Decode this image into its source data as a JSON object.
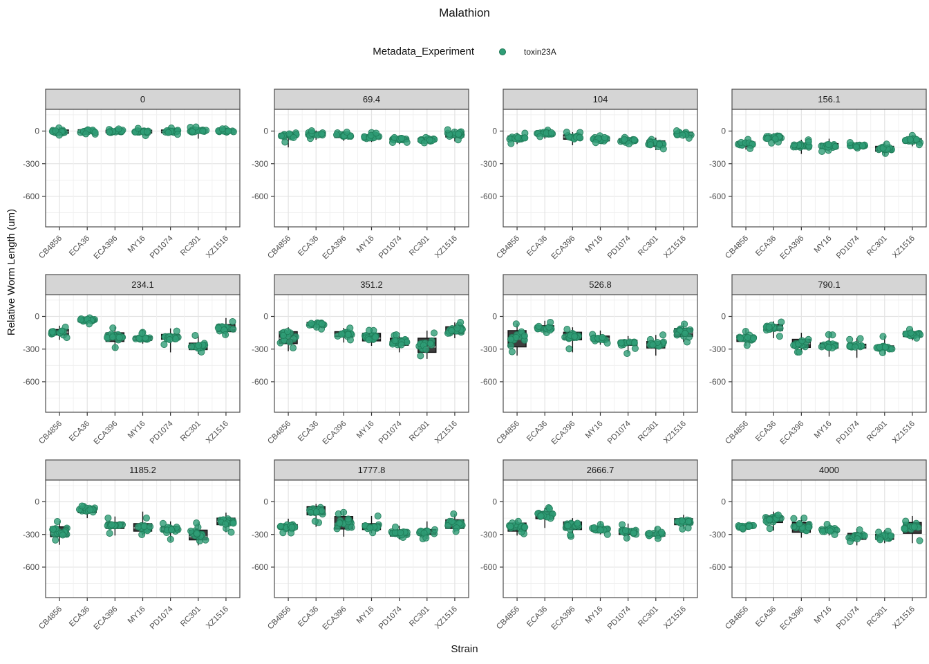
{
  "chart_data": {
    "type": "boxplot-jitter-facets",
    "title": "Malathion",
    "legend_title": "Metadata_Experiment",
    "legend_entries": [
      {
        "label": "toxin23A",
        "color": "#2f9e77"
      }
    ],
    "xlabel": "Strain",
    "ylabel": "Relative Worm Length (um)",
    "categories": [
      "CB4856",
      "ECA36",
      "ECA396",
      "MY16",
      "PD1074",
      "RC301",
      "XZ1516"
    ],
    "yticks": [
      0,
      -300,
      -600
    ],
    "grid_minor_y": [
      150,
      -150,
      -450,
      -750
    ],
    "ylim": [
      200,
      -880
    ],
    "grid": true,
    "legend_position": "top",
    "points_per_group": 16,
    "colors": {
      "point": "#2f9e77",
      "point_stroke": "#1e7a57",
      "box_fill": "#3d3d3d",
      "box_stroke": "#141414",
      "median": "#9a9a9a",
      "strip_bg": "#d5d5d5",
      "panel_border": "#4d4d4d",
      "grid_major": "#e3e3e3",
      "grid_minor": "#f0f0f0",
      "tick_text": "#4d4d4d",
      "axis_tick": "#333333"
    },
    "facets": [
      {
        "label": "0",
        "boxes": [
          [
            -45,
            -20,
            -5,
            10,
            35
          ],
          [
            -40,
            -15,
            0,
            12,
            40
          ],
          [
            -30,
            -15,
            -5,
            8,
            25
          ],
          [
            -45,
            -18,
            -5,
            8,
            30
          ],
          [
            -30,
            -15,
            -5,
            10,
            30
          ],
          [
            -70,
            -15,
            0,
            15,
            40
          ],
          [
            -25,
            -15,
            -5,
            8,
            20
          ]
        ]
      },
      {
        "label": "69.4",
        "boxes": [
          [
            -150,
            -60,
            -40,
            -20,
            -5
          ],
          [
            -80,
            -45,
            -25,
            -10,
            5
          ],
          [
            -90,
            -60,
            -45,
            -25,
            -5
          ],
          [
            -100,
            -70,
            -50,
            -35,
            -10
          ],
          [
            -120,
            -95,
            -80,
            -60,
            -40
          ],
          [
            -115,
            -95,
            -85,
            -70,
            -55
          ],
          [
            -95,
            -55,
            -25,
            -5,
            15
          ]
        ]
      },
      {
        "label": "104",
        "boxes": [
          [
            -120,
            -80,
            -60,
            -45,
            -15
          ],
          [
            -70,
            -35,
            -20,
            -8,
            10
          ],
          [
            -130,
            -75,
            -55,
            -35,
            -10
          ],
          [
            -115,
            -90,
            -75,
            -55,
            -35
          ],
          [
            -130,
            -105,
            -90,
            -70,
            -50
          ],
          [
            -175,
            -140,
            -120,
            -90,
            -60
          ],
          [
            -70,
            -45,
            -25,
            -10,
            10
          ]
        ]
      },
      {
        "label": "156.1",
        "boxes": [
          [
            -170,
            -140,
            -120,
            -100,
            -75
          ],
          [
            -110,
            -80,
            -60,
            -40,
            -20
          ],
          [
            -210,
            -160,
            -140,
            -110,
            -80
          ],
          [
            -195,
            -160,
            -140,
            -115,
            -70
          ],
          [
            -165,
            -145,
            -135,
            -120,
            -100
          ],
          [
            -225,
            -185,
            -165,
            -140,
            -105
          ],
          [
            -140,
            -110,
            -90,
            -70,
            -35
          ]
        ]
      },
      {
        "label": "234.1",
        "boxes": [
          [
            -215,
            -170,
            -145,
            -120,
            -85
          ],
          [
            -75,
            -50,
            -35,
            -22,
            -10
          ],
          [
            -310,
            -230,
            -205,
            -150,
            -95
          ],
          [
            -250,
            -220,
            -205,
            -185,
            -120
          ],
          [
            -330,
            -210,
            -190,
            -165,
            -110
          ],
          [
            -345,
            -305,
            -280,
            -245,
            -175
          ],
          [
            -185,
            -140,
            -110,
            -75,
            -15
          ]
        ]
      },
      {
        "label": "351.2",
        "boxes": [
          [
            -320,
            -250,
            -200,
            -140,
            -100
          ],
          [
            -120,
            -85,
            -70,
            -55,
            -35
          ],
          [
            -240,
            -185,
            -165,
            -140,
            -105
          ],
          [
            -270,
            -225,
            -200,
            -155,
            -120
          ],
          [
            -330,
            -265,
            -235,
            -200,
            -150
          ],
          [
            -390,
            -330,
            -280,
            -200,
            -130
          ],
          [
            -200,
            -160,
            -130,
            -95,
            -55
          ]
        ]
      },
      {
        "label": "526.8",
        "boxes": [
          [
            -360,
            -280,
            -210,
            -130,
            -65
          ],
          [
            -160,
            -130,
            -110,
            -85,
            -40
          ],
          [
            -330,
            -215,
            -185,
            -145,
            -100
          ],
          [
            -260,
            -225,
            -205,
            -180,
            -130
          ],
          [
            -340,
            -265,
            -245,
            -220,
            -180
          ],
          [
            -360,
            -290,
            -260,
            -230,
            -170
          ],
          [
            -235,
            -185,
            -150,
            -110,
            -60
          ]
        ]
      },
      {
        "label": "790.1",
        "boxes": [
          [
            -270,
            -230,
            -205,
            -175,
            -120
          ],
          [
            -200,
            -130,
            -100,
            -75,
            -45
          ],
          [
            -330,
            -285,
            -250,
            -210,
            -150
          ],
          [
            -370,
            -290,
            -270,
            -245,
            -140
          ],
          [
            -380,
            -290,
            -275,
            -255,
            -200
          ],
          [
            -350,
            -310,
            -295,
            -270,
            -180
          ],
          [
            -220,
            -185,
            -165,
            -140,
            -110
          ]
        ]
      },
      {
        "label": "1185.2",
        "boxes": [
          [
            -395,
            -320,
            -290,
            -230,
            -175
          ],
          [
            -150,
            -100,
            -80,
            -55,
            -30
          ],
          [
            -310,
            -245,
            -220,
            -190,
            -135
          ],
          [
            -310,
            -270,
            -240,
            -200,
            -90
          ],
          [
            -360,
            -275,
            -250,
            -225,
            -180
          ],
          [
            -400,
            -350,
            -320,
            -260,
            -190
          ],
          [
            -280,
            -210,
            -180,
            -150,
            -100
          ]
        ]
      },
      {
        "label": "1777.8",
        "boxes": [
          [
            -290,
            -250,
            -230,
            -210,
            -155
          ],
          [
            -230,
            -120,
            -85,
            -45,
            -20
          ],
          [
            -320,
            -250,
            -200,
            -135,
            -85
          ],
          [
            -290,
            -255,
            -230,
            -200,
            -130
          ],
          [
            -345,
            -315,
            -290,
            -260,
            -220
          ],
          [
            -340,
            -300,
            -280,
            -255,
            -180
          ],
          [
            -280,
            -245,
            -220,
            -165,
            -110
          ]
        ]
      },
      {
        "label": "2666.7",
        "boxes": [
          [
            -310,
            -270,
            -235,
            -195,
            -165
          ],
          [
            -240,
            -155,
            -120,
            -90,
            -55
          ],
          [
            -320,
            -255,
            -230,
            -185,
            -150
          ],
          [
            -300,
            -270,
            -250,
            -230,
            -180
          ],
          [
            -350,
            -300,
            -280,
            -250,
            -200
          ],
          [
            -340,
            -315,
            -300,
            -280,
            -230
          ],
          [
            -250,
            -210,
            -185,
            -155,
            -120
          ]
        ]
      },
      {
        "label": "4000",
        "boxes": [
          [
            -250,
            -235,
            -225,
            -210,
            -195
          ],
          [
            -265,
            -190,
            -160,
            -130,
            -90
          ],
          [
            -330,
            -280,
            -240,
            -190,
            -140
          ],
          [
            -310,
            -280,
            -260,
            -240,
            -200
          ],
          [
            -400,
            -345,
            -320,
            -290,
            -250
          ],
          [
            -380,
            -345,
            -330,
            -300,
            -260
          ],
          [
            -380,
            -290,
            -250,
            -190,
            -130
          ]
        ]
      }
    ]
  }
}
